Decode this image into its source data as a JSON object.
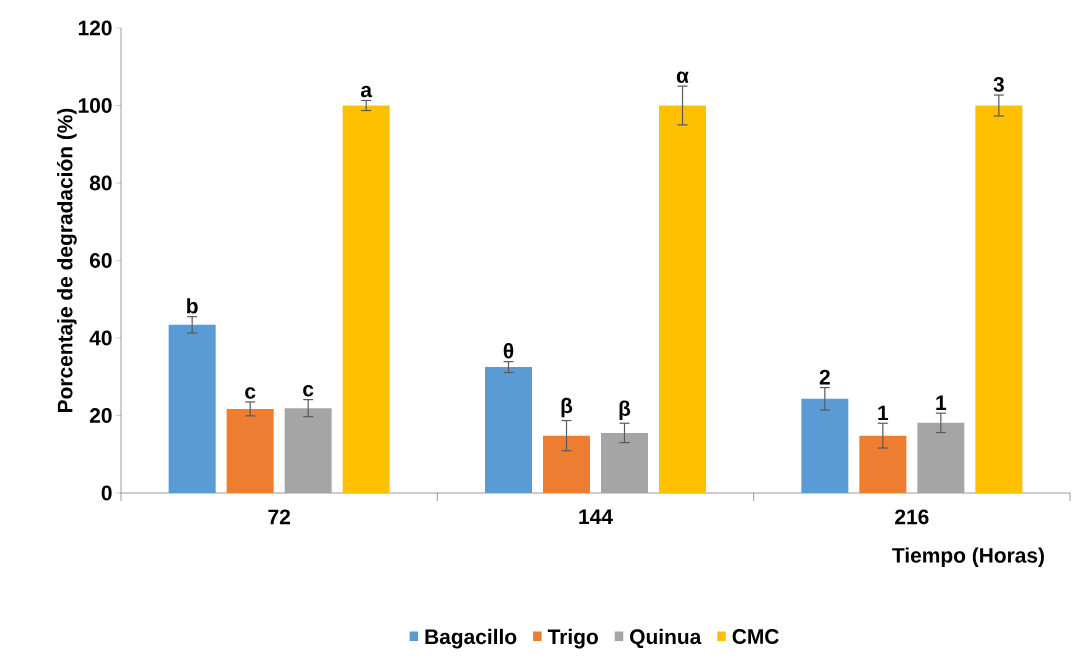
{
  "chart_data": {
    "type": "bar",
    "ylabel": "Porcentaje de degradación (%)",
    "xlabel": "Tiempo (Horas)",
    "categories": [
      "72",
      "144",
      "216"
    ],
    "series": [
      {
        "name": "Bagacillo",
        "color": "#5b9bd5",
        "values": [
          43.4,
          32.5,
          24.3
        ],
        "errors": [
          2.1,
          1.4,
          2.9
        ]
      },
      {
        "name": "Trigo",
        "color": "#ed7d31",
        "values": [
          21.7,
          14.8,
          14.8
        ],
        "errors": [
          1.8,
          3.9,
          3.2
        ]
      },
      {
        "name": "Quinua",
        "color": "#a5a5a5",
        "values": [
          21.9,
          15.5,
          18.1
        ],
        "errors": [
          2.2,
          2.5,
          2.5
        ]
      },
      {
        "name": "CMC",
        "color": "#ffc000",
        "values": [
          100,
          100,
          100
        ],
        "errors": [
          1.3,
          5,
          2.7
        ]
      }
    ],
    "annotations": [
      "b",
      "c",
      "c",
      "a",
      "θ",
      "β",
      "β",
      "α",
      "2",
      "1",
      "1",
      "3"
    ],
    "ylim": [
      0,
      120
    ],
    "yticks": [
      0,
      20,
      40,
      60,
      80,
      100,
      120
    ],
    "legend": "bottom"
  }
}
